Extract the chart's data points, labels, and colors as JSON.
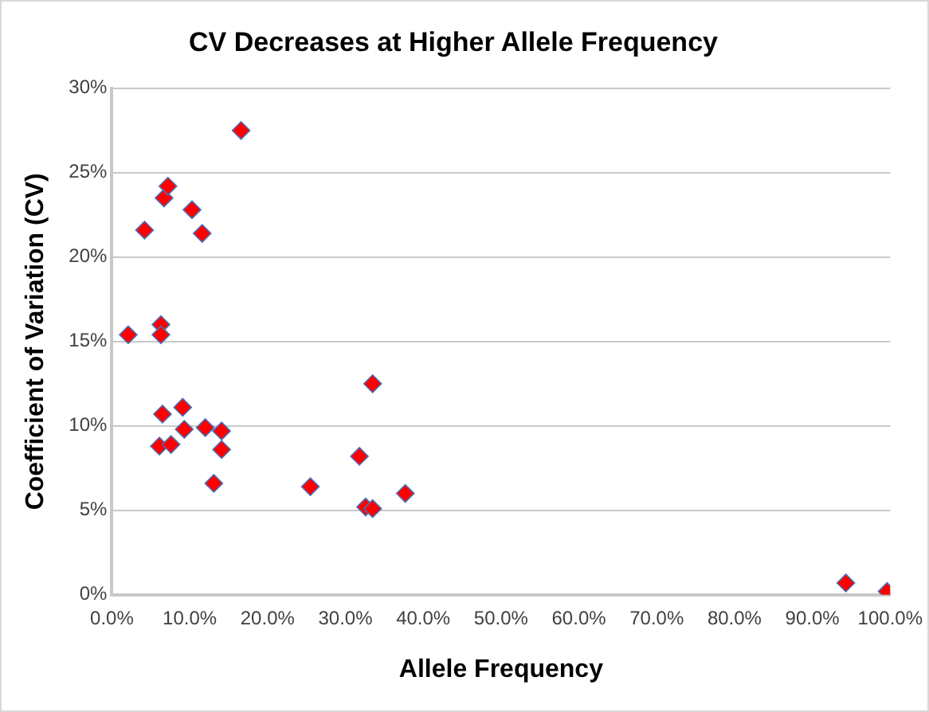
{
  "chart_data": {
    "type": "scatter",
    "title": "CV Decreases at Higher Allele Frequency",
    "xlabel": "Allele Frequency",
    "ylabel": "Coefficient of Variation (CV)",
    "x": [
      2.1,
      6.3,
      6.3,
      4.2,
      6.7,
      7.2,
      10.3,
      11.6,
      16.6,
      6.5,
      9.1,
      6.1,
      7.6,
      9.3,
      12.0,
      14.1,
      14.1,
      13.1,
      25.5,
      31.8,
      33.5,
      32.6,
      33.5,
      37.7,
      94.3,
      99.6
    ],
    "series": [
      {
        "color": "#ff0000",
        "values": [
          15.4,
          16.0,
          15.4,
          21.6,
          23.5,
          24.2,
          22.8,
          21.4,
          27.5,
          10.7,
          11.1,
          8.8,
          8.9,
          9.8,
          9.9,
          9.7,
          8.6,
          6.6,
          6.4,
          8.2,
          12.5,
          5.2,
          5.1,
          6.0,
          0.7,
          0.2
        ]
      }
    ],
    "marker": "diamond",
    "grid": "y",
    "legend": false,
    "xlim": [
      0,
      100
    ],
    "xticks": [
      {
        "value": 0,
        "label": "0.0%"
      },
      {
        "value": 10,
        "label": "10.0%"
      },
      {
        "value": 20,
        "label": "20.0%"
      },
      {
        "value": 30,
        "label": "30.0%"
      },
      {
        "value": 40,
        "label": "40.0%"
      },
      {
        "value": 50,
        "label": "50.0%"
      },
      {
        "value": 60,
        "label": "60.0%"
      },
      {
        "value": 70,
        "label": "70.0%"
      },
      {
        "value": 80,
        "label": "80.0%"
      },
      {
        "value": 90,
        "label": "90.0%"
      },
      {
        "value": 100,
        "label": "100.0%"
      }
    ],
    "ylim": [
      0,
      30
    ],
    "yticks": [
      {
        "value": 0,
        "label": "0%"
      },
      {
        "value": 5,
        "label": "5%"
      },
      {
        "value": 10,
        "label": "10%"
      },
      {
        "value": 15,
        "label": "15%"
      },
      {
        "value": 20,
        "label": "20%"
      },
      {
        "value": 25,
        "label": "25%"
      },
      {
        "value": 30,
        "label": "30%"
      }
    ]
  }
}
